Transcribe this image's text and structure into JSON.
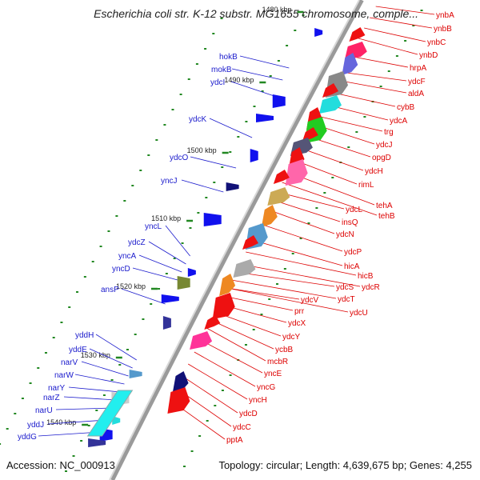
{
  "title": "Escherichia coli str. K-12 substr. MG1655 chromosome, comple...",
  "accession_label": "Accession: NC_000913",
  "topology_label": "Topology: circular; Length: 4,639,675 bp; Genes: 4,255",
  "colors": {
    "label_right": "#dd0000",
    "label_left": "#1a1acc",
    "tick": "#228822",
    "axis": "#8a8a8a"
  },
  "kbp_ticks": [
    "1480 kbp",
    "1490 kbp",
    "1500 kbp",
    "1510 kbp",
    "1520 kbp",
    "1530 kbp",
    "1540 kbp"
  ],
  "genes_right": [
    "ynbA",
    "ynbB",
    "ynbC",
    "ynbD",
    "hrpA",
    "ydcF",
    "aldA",
    "cybB",
    "ydcA",
    "trg",
    "ydcJ",
    "opgD",
    "ydcH",
    "rimL",
    "tehA",
    "tehB",
    "ydcL",
    "insQ",
    "ydcN",
    "ydcP",
    "hicA",
    "hicB",
    "ydcR",
    "ydcS",
    "ydcT",
    "ydcU",
    "ydcV",
    "prr",
    "ydcX",
    "ydcY",
    "ycbB",
    "mcbR",
    "yncE",
    "yncG",
    "yncH",
    "ydcD",
    "ydcC",
    "pptA"
  ],
  "genes_left": [
    "hokB",
    "mokB",
    "ydcI",
    "ydcK",
    "ydcO",
    "yncJ",
    "yncL",
    "ydcZ",
    "yncA",
    "yncD",
    "ansP",
    "yddH",
    "yddE",
    "narV",
    "narW",
    "narY",
    "narZ",
    "narU",
    "yddJ",
    "yddG"
  ]
}
